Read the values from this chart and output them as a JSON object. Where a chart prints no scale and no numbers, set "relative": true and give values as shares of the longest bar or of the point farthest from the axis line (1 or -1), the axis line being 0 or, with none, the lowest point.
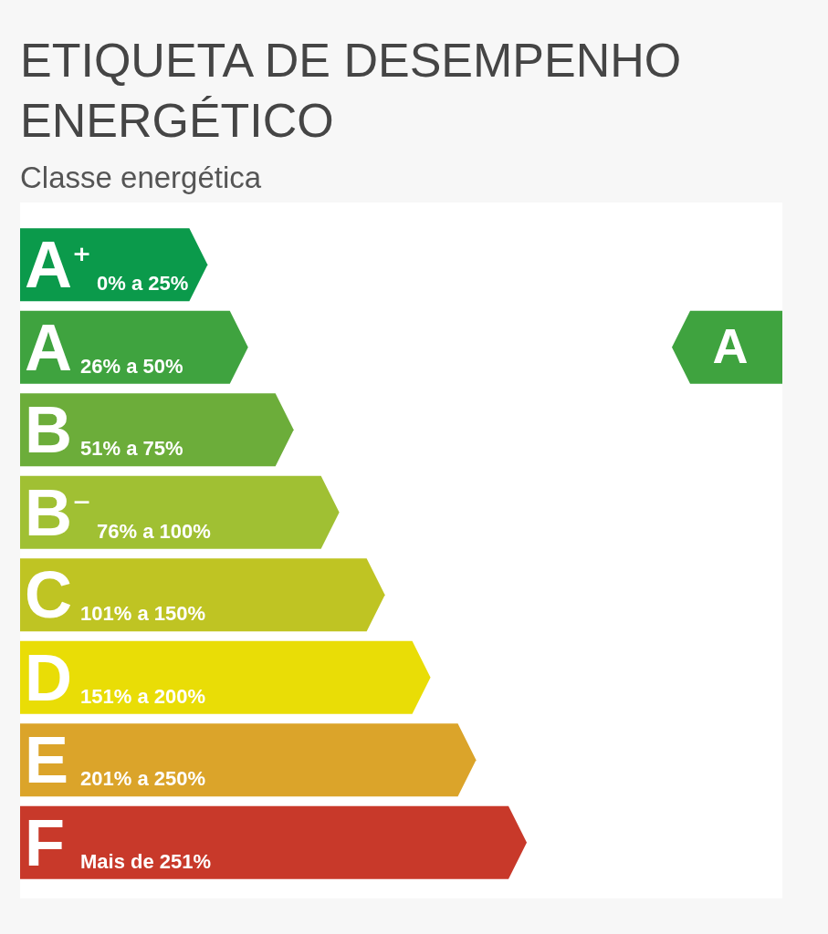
{
  "chart_data": {
    "type": "bar",
    "orientation": "horizontal",
    "relative": true,
    "title": "ETIQUETA DE DESEMPENHO ENERGÉTICO",
    "subtitle": "Classe energética",
    "categories": [
      "A⁺",
      "A",
      "B",
      "B⁻",
      "C",
      "D",
      "E",
      "F"
    ],
    "values": [
      0.37,
      0.45,
      0.54,
      0.63,
      0.72,
      0.81,
      0.9,
      1
    ],
    "colors": [
      "#0b9a4b",
      "#3fa33f",
      "#6cad3a",
      "#a0c033",
      "#bfc423",
      "#e9dd06",
      "#dba42a",
      "#c8392a"
    ],
    "needle": "A",
    "annotations": [
      {
        "text": "0% a 25%",
        "y": "A⁺"
      },
      {
        "text": "26% a 50%",
        "y": "A"
      },
      {
        "text": "51% a 75%",
        "y": "B"
      },
      {
        "text": "76% a 100%",
        "y": "B⁻"
      },
      {
        "text": "101% a 150%",
        "y": "C"
      },
      {
        "text": "151% a 200%",
        "y": "D"
      },
      {
        "text": "201% a 250%",
        "y": "E"
      },
      {
        "text": "Mais de 251%",
        "y": "F"
      }
    ]
  }
}
